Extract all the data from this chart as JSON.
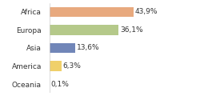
{
  "categories": [
    "Africa",
    "Europa",
    "Asia",
    "America",
    "Oceania"
  ],
  "values": [
    43.9,
    36.1,
    13.6,
    6.3,
    0.1
  ],
  "labels": [
    "43,9%",
    "36,1%",
    "13,6%",
    "6,3%",
    "0,1%"
  ],
  "bar_colors": [
    "#e8a97e",
    "#b5c98a",
    "#7186b8",
    "#f0d06a",
    "#cccccc"
  ],
  "background_color": "#ffffff",
  "label_fontsize": 6.5,
  "tick_fontsize": 6.5,
  "xlim": [
    0,
    70
  ],
  "bar_height": 0.55
}
